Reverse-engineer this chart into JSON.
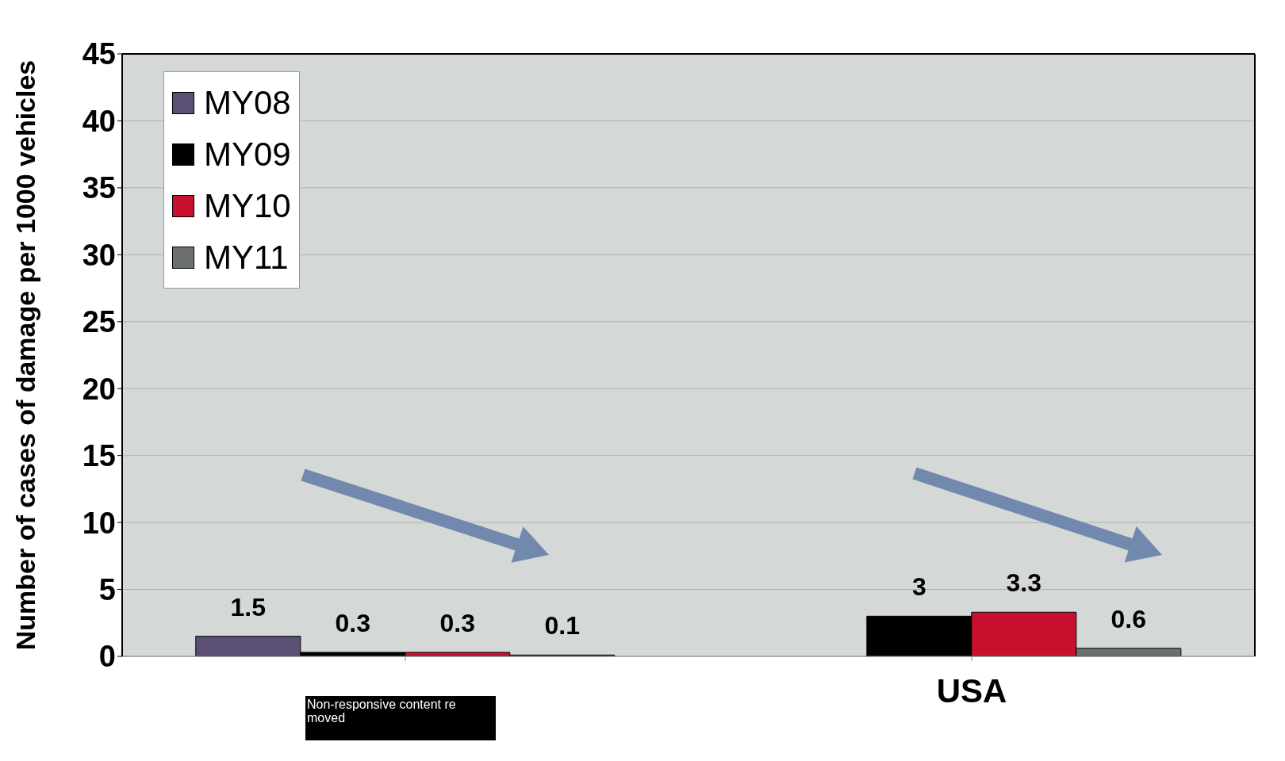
{
  "chart_data": {
    "type": "bar",
    "ylabel": "Number of cases of damage per 1000 vehicles",
    "categories": [
      null,
      "USA"
    ],
    "series": [
      {
        "name": "MY08",
        "color": "#5b4f73",
        "values": [
          1.5,
          null
        ]
      },
      {
        "name": "MY09",
        "color": "#000000",
        "values": [
          0.3,
          3
        ]
      },
      {
        "name": "MY10",
        "color": "#c8102e",
        "values": [
          0.3,
          3.3
        ]
      },
      {
        "name": "MY11",
        "color": "#6d7071",
        "values": [
          0.1,
          0.6
        ]
      }
    ],
    "ylim": [
      0,
      45
    ],
    "yticks": [
      0,
      5,
      10,
      15,
      20,
      25,
      30,
      35,
      40,
      45
    ],
    "grid": "y",
    "legend": "top left",
    "data_labels": true,
    "annotations": [
      "Non-responsive content re moved"
    ]
  }
}
